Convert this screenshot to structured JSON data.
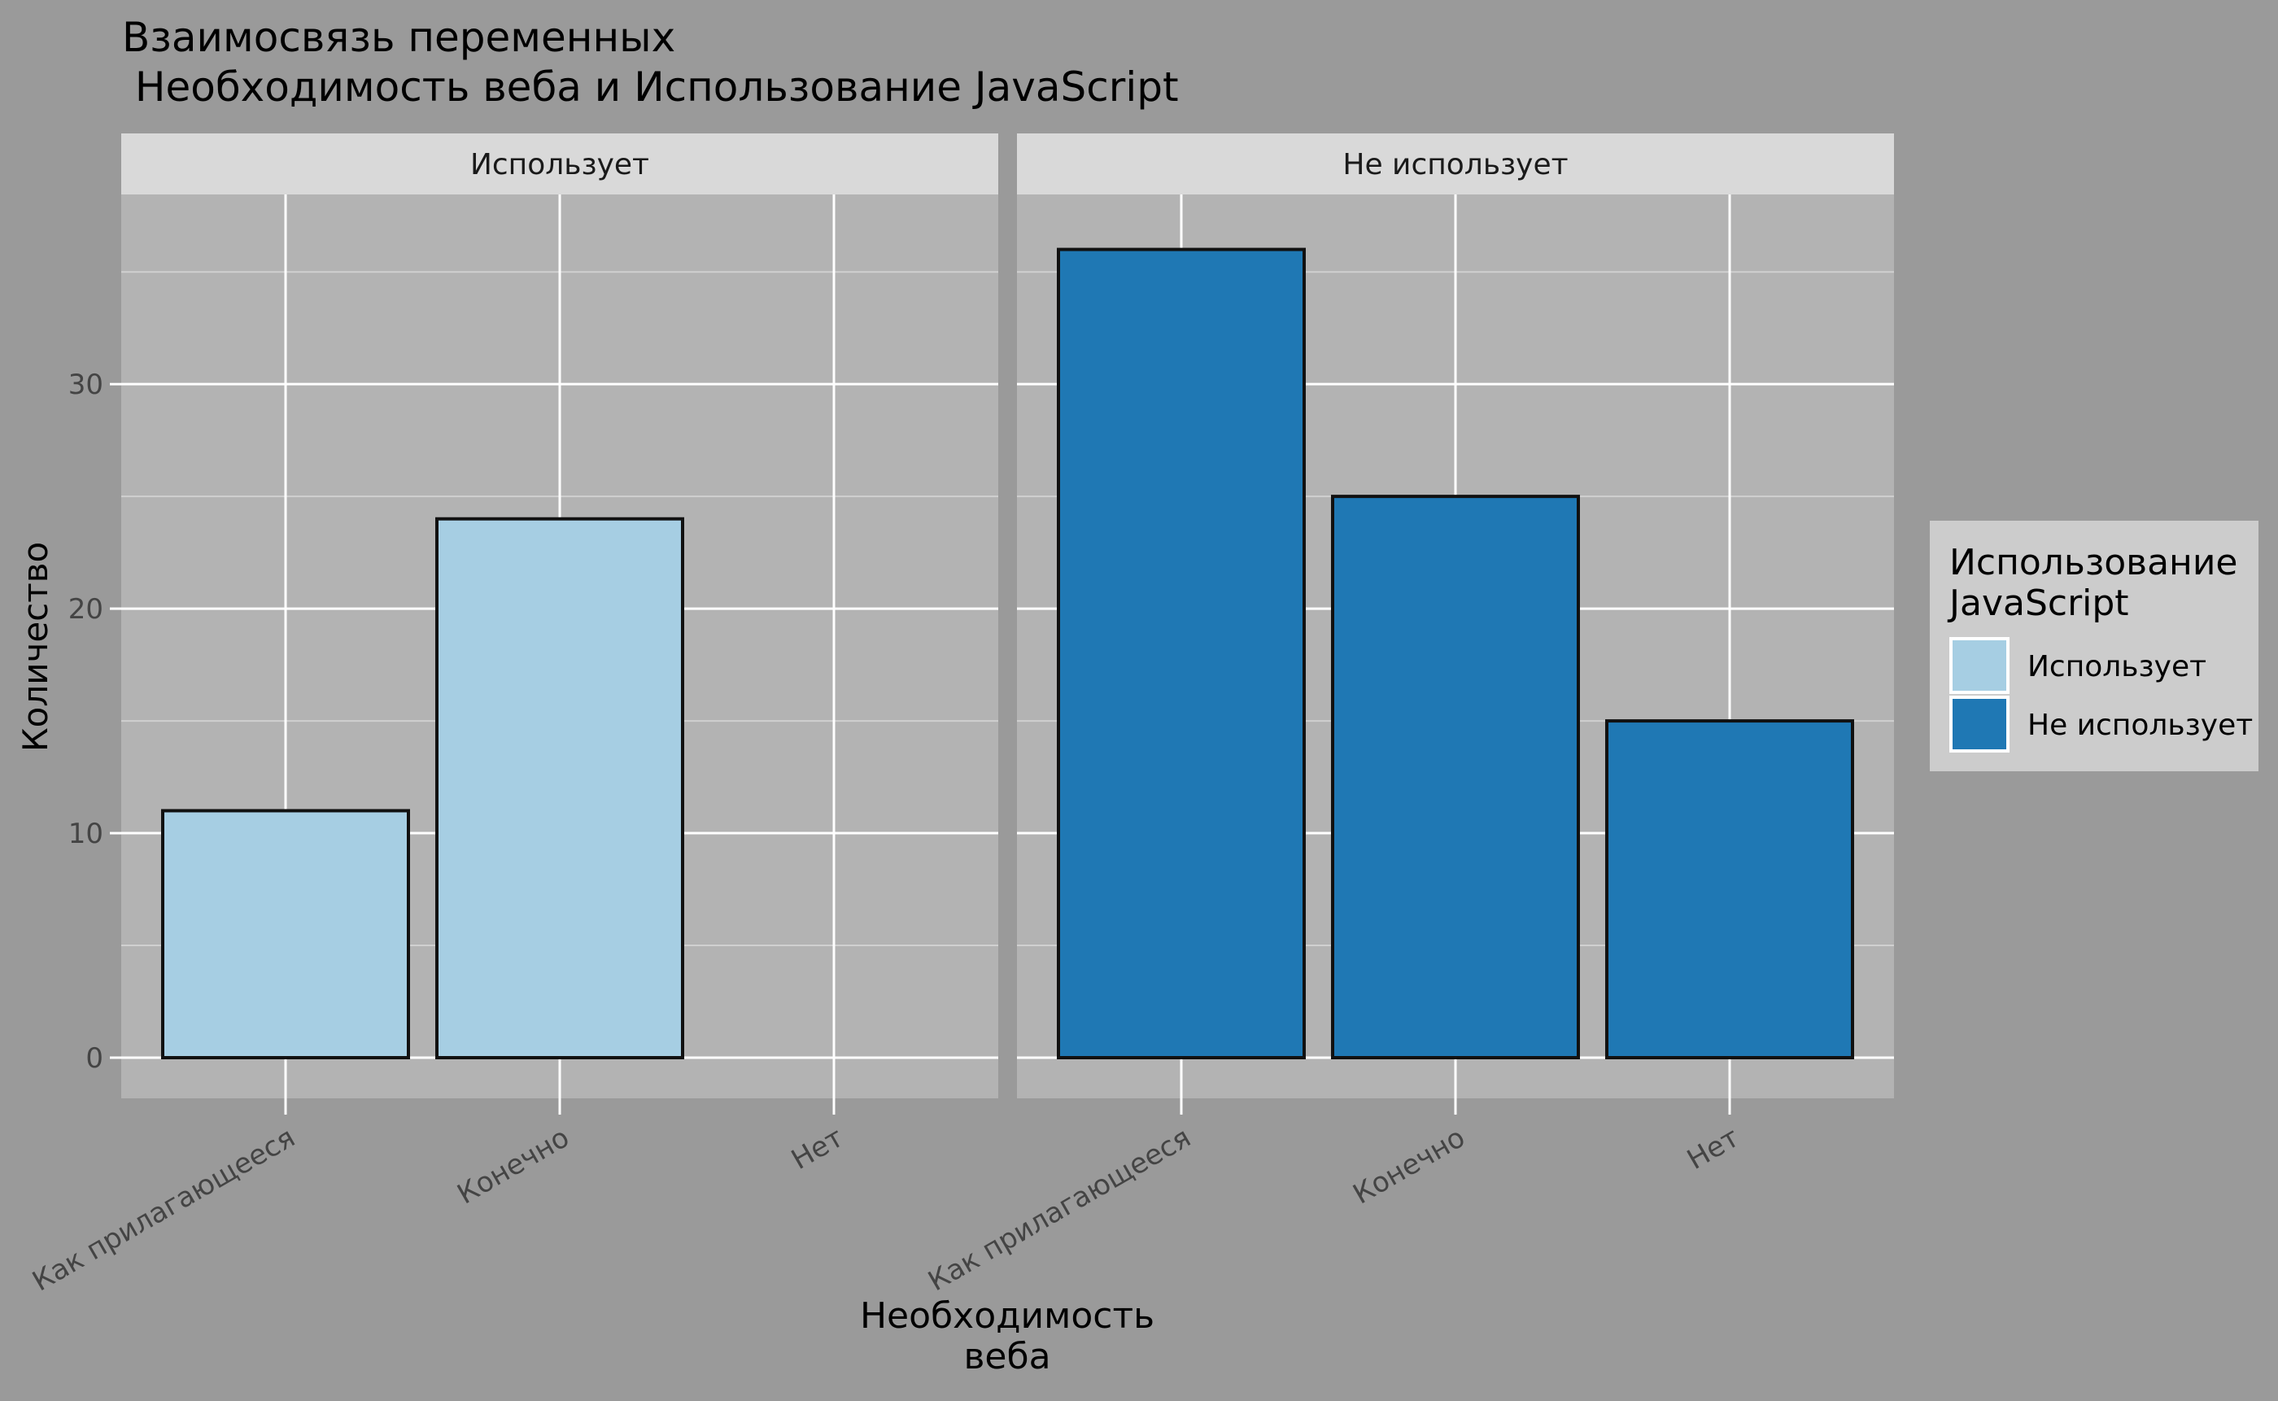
{
  "chart_data": {
    "type": "bar",
    "title_line1": "Взаимосвязь переменных",
    "title_line2": " Необходимость веба и Использование JavaScript",
    "xlabel_line1": "Необходимость",
    "xlabel_line2": "веба",
    "ylabel": "Количество",
    "categories": [
      "Как прилагающееся",
      "Конечно",
      "Нет"
    ],
    "yticks": [
      0,
      10,
      20,
      30
    ],
    "ylim": [
      0,
      37
    ],
    "grid": true,
    "legend": {
      "title_line1": "Использование",
      "title_line2": "JavaScript",
      "placement": "right"
    },
    "series": [
      {
        "name": "Использует",
        "color": "#a6cee3",
        "values": [
          11,
          24,
          0
        ]
      },
      {
        "name": "Не использует",
        "color": "#1f78b4",
        "values": [
          36,
          25,
          15
        ]
      }
    ],
    "panels": [
      {
        "label": "Использует",
        "series_index": 0
      },
      {
        "label": "Не использует",
        "series_index": 1
      }
    ]
  }
}
